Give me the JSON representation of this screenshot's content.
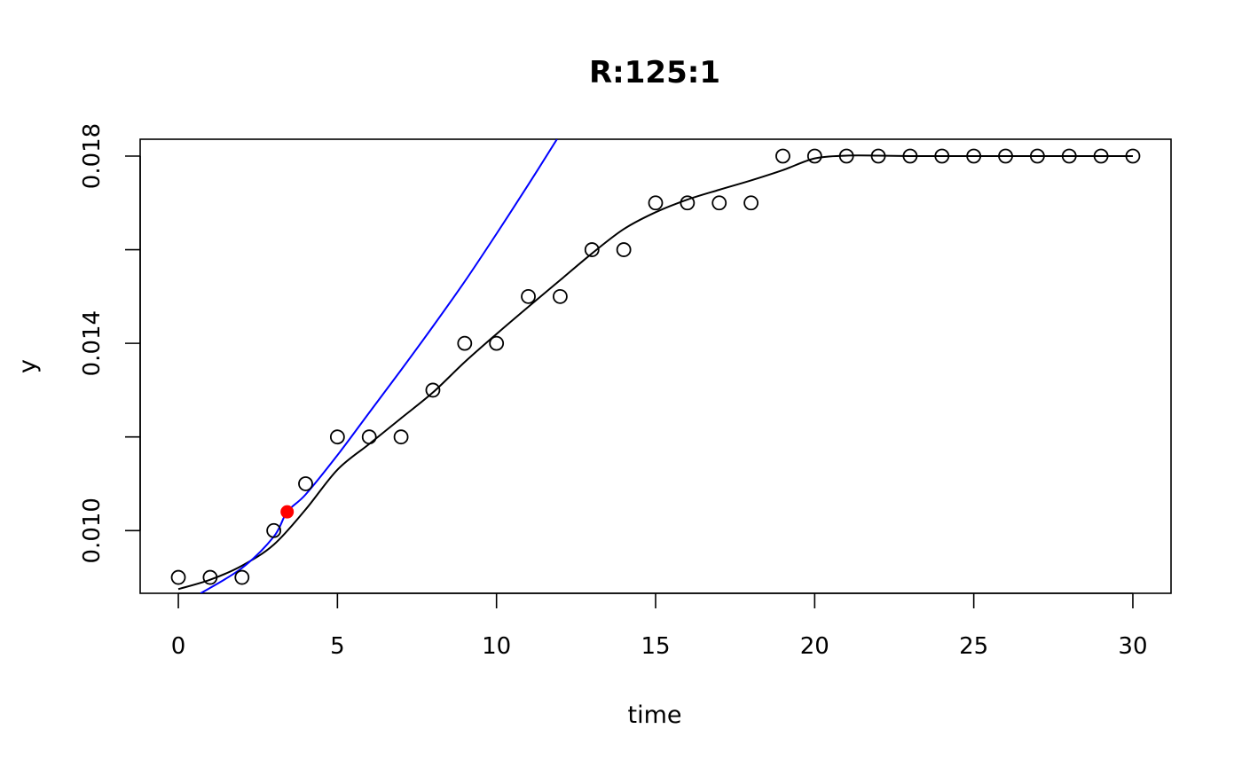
{
  "chart_data": {
    "type": "scatter",
    "title": "R:125:1",
    "xlabel": "time",
    "ylabel": "y",
    "xlim": [
      -1.2,
      31.2
    ],
    "ylim": [
      0.00866,
      0.01836
    ],
    "xticks": [
      0,
      5,
      10,
      15,
      20,
      25,
      30
    ],
    "xtick_labels": [
      "0",
      "5",
      "10",
      "15",
      "20",
      "25",
      "30"
    ],
    "yticks": [
      0.01,
      0.012,
      0.014,
      0.016,
      0.018
    ],
    "ytick_labels": [
      "0.010",
      "",
      "0.014",
      "",
      "0.018"
    ],
    "grid": false,
    "series": [
      {
        "kind": "points",
        "color": "#000000",
        "x": [
          0,
          1,
          2,
          3,
          4,
          5,
          6,
          7,
          8,
          9,
          10,
          11,
          12,
          13,
          14,
          15,
          16,
          17,
          18,
          19,
          20,
          21,
          22,
          23,
          24,
          25,
          26,
          27,
          28,
          29,
          30
        ],
        "y": [
          0.009,
          0.009,
          0.009,
          0.01,
          0.011,
          0.012,
          0.012,
          0.012,
          0.013,
          0.014,
          0.014,
          0.015,
          0.015,
          0.016,
          0.016,
          0.017,
          0.017,
          0.017,
          0.017,
          0.018,
          0.018,
          0.018,
          0.018,
          0.018,
          0.018,
          0.018,
          0.018,
          0.018,
          0.018,
          0.018,
          0.018
        ]
      },
      {
        "kind": "smooth-line",
        "color": "#000000",
        "x": [
          0,
          1,
          2,
          3,
          4,
          5,
          6,
          7,
          8,
          9,
          10,
          11,
          12,
          13,
          14,
          15,
          16,
          17,
          18,
          19,
          20,
          21,
          22,
          23,
          24,
          25,
          26,
          27,
          28,
          29,
          30
        ],
        "y": [
          0.00875,
          0.00895,
          0.00925,
          0.0097,
          0.01045,
          0.0113,
          0.01185,
          0.0124,
          0.01295,
          0.0136,
          0.0142,
          0.01478,
          0.01535,
          0.01592,
          0.01644,
          0.0168,
          0.01707,
          0.01728,
          0.01748,
          0.0177,
          0.01795,
          0.01801,
          0.01801,
          0.018,
          0.018,
          0.018,
          0.018,
          0.018,
          0.018,
          0.018,
          0.018
        ]
      },
      {
        "kind": "fit-line",
        "color": "#0000ff",
        "x": [
          0.7,
          2,
          3,
          3.42,
          4,
          5,
          6,
          7,
          8,
          9,
          10,
          11,
          11.9
        ],
        "y": [
          0.00866,
          0.0092,
          0.00987,
          0.0104,
          0.01077,
          0.01161,
          0.01252,
          0.01343,
          0.01436,
          0.01532,
          0.01634,
          0.01739,
          0.01836
        ]
      },
      {
        "kind": "highlight-point",
        "color": "#ff0000",
        "x": [
          3.42
        ],
        "y": [
          0.0104
        ]
      }
    ]
  }
}
